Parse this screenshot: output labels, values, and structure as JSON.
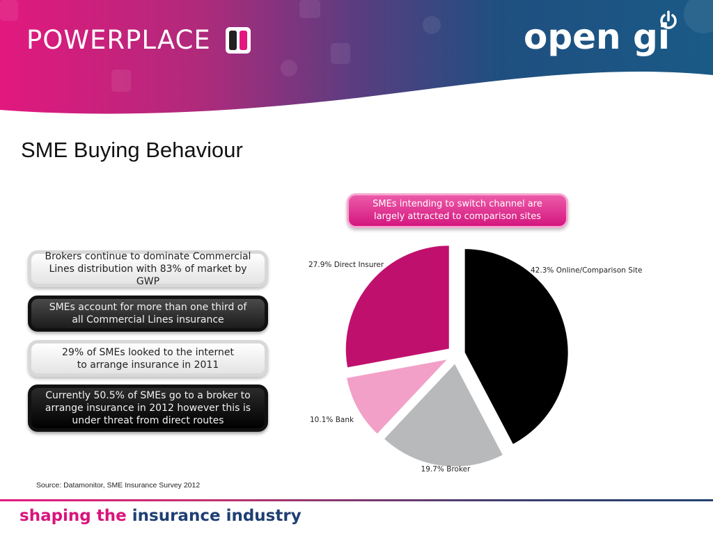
{
  "header": {
    "brand_left": "POWERPLACE",
    "brand_right": "open gi",
    "colors": {
      "magenta": "#e2187e",
      "navy": "#1f3f73"
    }
  },
  "slide": {
    "title": "SME Buying Behaviour",
    "callout": "SMEs intending to switch channel are\nlargely attracted to comparison sites",
    "bullets": [
      {
        "text": "Brokers continue to dominate Commercial\nLines distribution with 83% of market by GWP",
        "style": "light"
      },
      {
        "text": "SMEs account for more than one third of\nall Commercial Lines insurance",
        "style": "dark"
      },
      {
        "text": "29% of SMEs looked to the internet\nto arrange insurance in 2011",
        "style": "light"
      },
      {
        "text": "Currently 50.5% of SMEs go to a broker to\narrange insurance in 2012 however this is\nunder threat from direct routes",
        "style": "black"
      }
    ],
    "source": "Source: Datamonitor, SME Insurance  Survey 2012"
  },
  "chart_data": {
    "type": "pie",
    "slices": [
      {
        "label": "42.3% Online/Comparison Site",
        "value": 42.3,
        "color": "#000000"
      },
      {
        "label": "19.7% Broker",
        "value": 19.7,
        "color": "#b7b9ba"
      },
      {
        "label": "10.1% Bank",
        "value": 10.1,
        "color": "#f2a0c7"
      },
      {
        "label": "27.9% Direct Insurer",
        "value": 27.9,
        "color": "#c0106e"
      }
    ],
    "exploded": true,
    "legend": "none"
  },
  "footer": {
    "tagline_part1": "shaping the",
    "tagline_part2": "insurance industry"
  }
}
